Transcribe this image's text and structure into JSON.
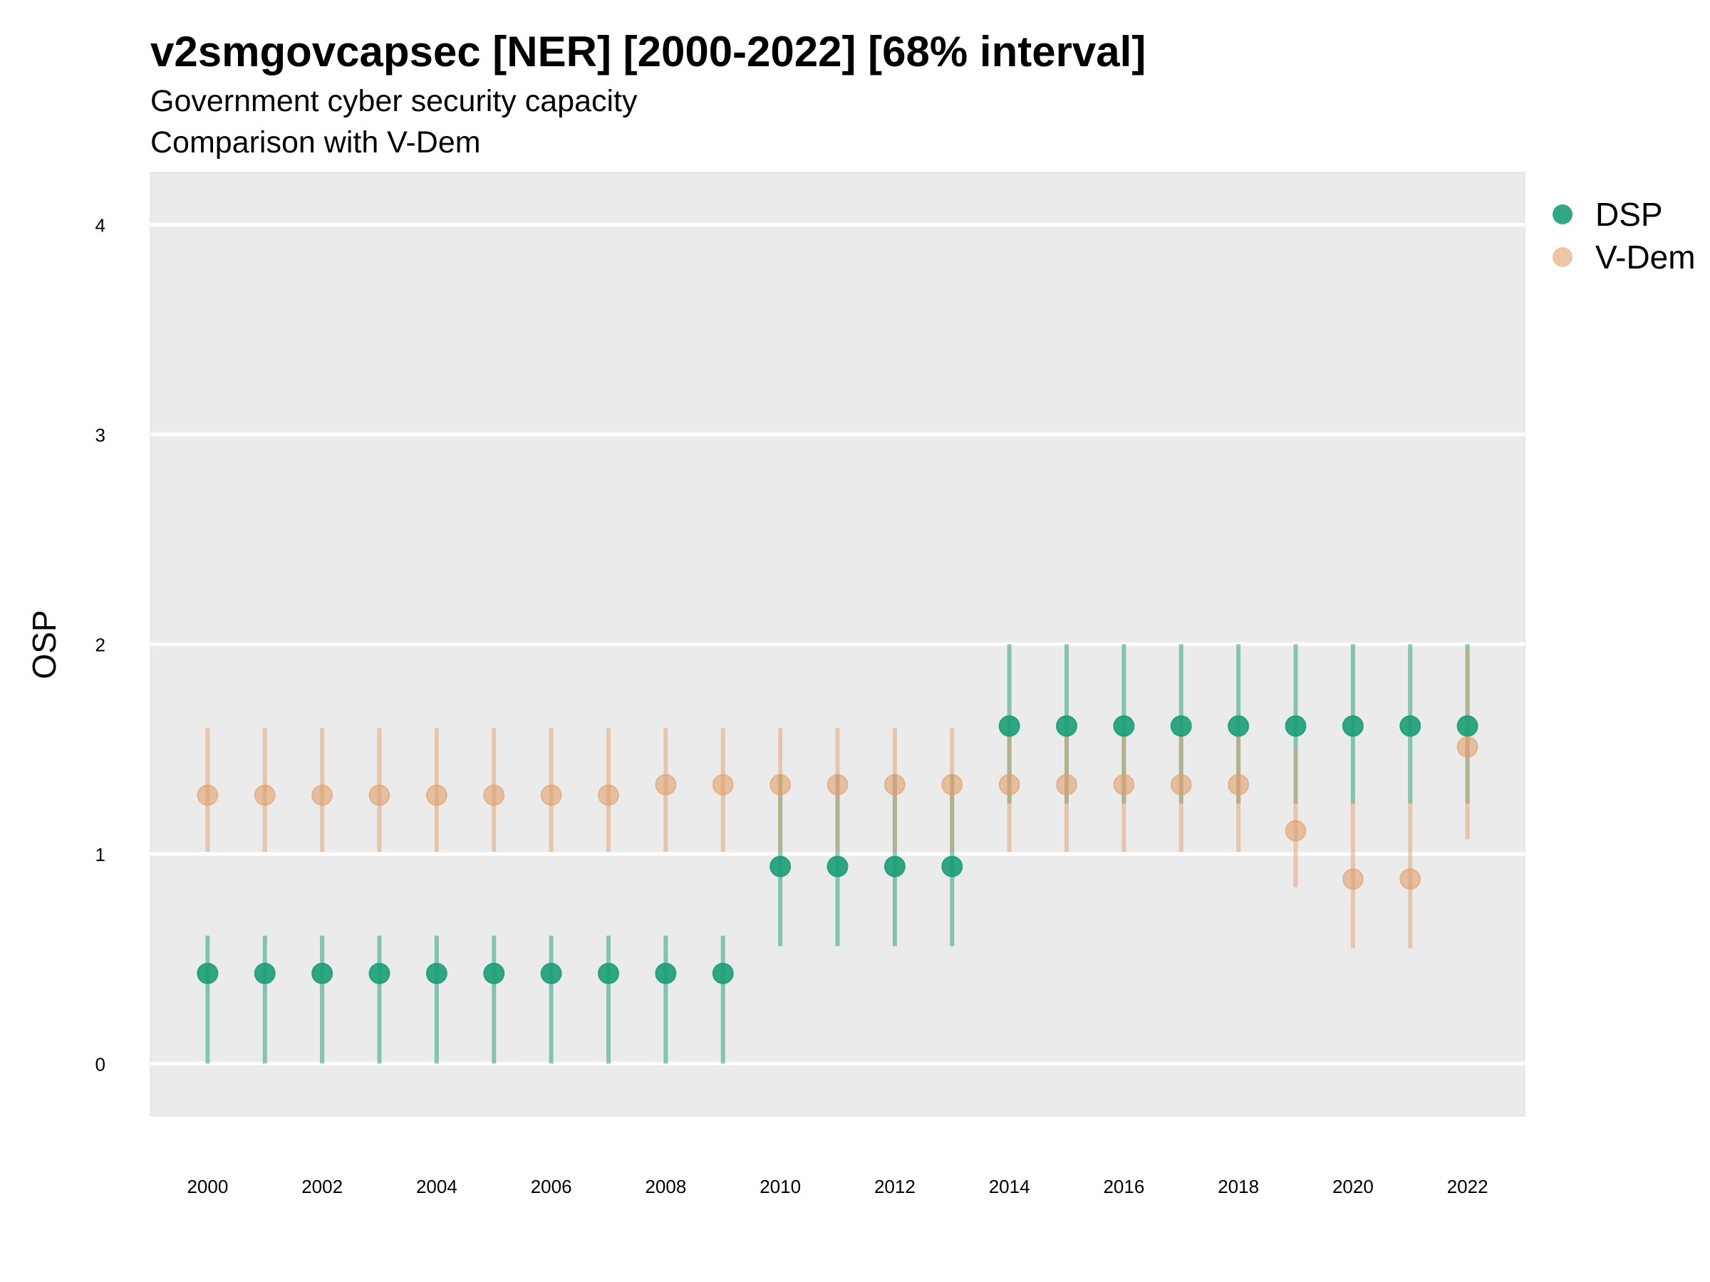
{
  "chart_data": {
    "type": "scatter",
    "title": "v2smgovcapsec [NER] [2000-2022] [68% interval]",
    "subtitle": [
      "Government cyber security capacity",
      "Comparison with V-Dem"
    ],
    "xlabel": "",
    "ylabel": "OSP",
    "xlim": [
      1999,
      2023
    ],
    "ylim": [
      -0.25,
      4.25
    ],
    "x_ticks": [
      2000,
      2002,
      2004,
      2006,
      2008,
      2010,
      2012,
      2014,
      2016,
      2018,
      2020,
      2022
    ],
    "y_ticks": [
      0,
      1,
      2,
      3,
      4
    ],
    "grid": "horizontal",
    "legend_position": "right",
    "series": [
      {
        "name": "DSP",
        "color": "#1b9e77",
        "x": [
          2000,
          2001,
          2002,
          2003,
          2004,
          2005,
          2006,
          2007,
          2008,
          2009,
          2010,
          2011,
          2012,
          2013,
          2014,
          2015,
          2016,
          2017,
          2018,
          2019,
          2020,
          2021,
          2022
        ],
        "values": [
          0.43,
          0.43,
          0.43,
          0.43,
          0.43,
          0.43,
          0.43,
          0.43,
          0.43,
          0.43,
          0.94,
          0.94,
          0.94,
          0.94,
          1.61,
          1.61,
          1.61,
          1.61,
          1.61,
          1.61,
          1.61,
          1.61,
          1.61
        ],
        "lower": [
          0.0,
          0.0,
          0.0,
          0.0,
          0.0,
          0.0,
          0.0,
          0.0,
          0.0,
          0.0,
          0.56,
          0.56,
          0.56,
          0.56,
          1.24,
          1.24,
          1.24,
          1.24,
          1.24,
          1.24,
          1.24,
          1.24,
          1.24
        ],
        "upper": [
          0.61,
          0.61,
          0.61,
          0.61,
          0.61,
          0.61,
          0.61,
          0.61,
          0.61,
          0.61,
          1.38,
          1.38,
          1.38,
          1.38,
          2.0,
          2.0,
          2.0,
          2.0,
          2.0,
          2.0,
          2.0,
          2.0,
          2.0
        ]
      },
      {
        "name": "V-Dem",
        "color": "#e0a06b",
        "x": [
          2000,
          2001,
          2002,
          2003,
          2004,
          2005,
          2006,
          2007,
          2008,
          2009,
          2010,
          2011,
          2012,
          2013,
          2014,
          2015,
          2016,
          2017,
          2018,
          2019,
          2020,
          2021,
          2022
        ],
        "values": [
          1.28,
          1.28,
          1.28,
          1.28,
          1.28,
          1.28,
          1.28,
          1.28,
          1.33,
          1.33,
          1.33,
          1.33,
          1.33,
          1.33,
          1.33,
          1.33,
          1.33,
          1.33,
          1.33,
          1.11,
          0.88,
          0.88,
          1.51
        ],
        "lower": [
          1.01,
          1.01,
          1.01,
          1.01,
          1.01,
          1.01,
          1.01,
          1.01,
          1.01,
          1.01,
          1.01,
          1.01,
          1.01,
          1.01,
          1.01,
          1.01,
          1.01,
          1.01,
          1.01,
          0.84,
          0.55,
          0.55,
          1.07
        ],
        "upper": [
          1.6,
          1.6,
          1.6,
          1.6,
          1.6,
          1.6,
          1.6,
          1.6,
          1.6,
          1.6,
          1.6,
          1.6,
          1.6,
          1.6,
          1.6,
          1.6,
          1.6,
          1.6,
          1.6,
          1.5,
          1.25,
          1.25,
          1.98
        ]
      }
    ]
  }
}
